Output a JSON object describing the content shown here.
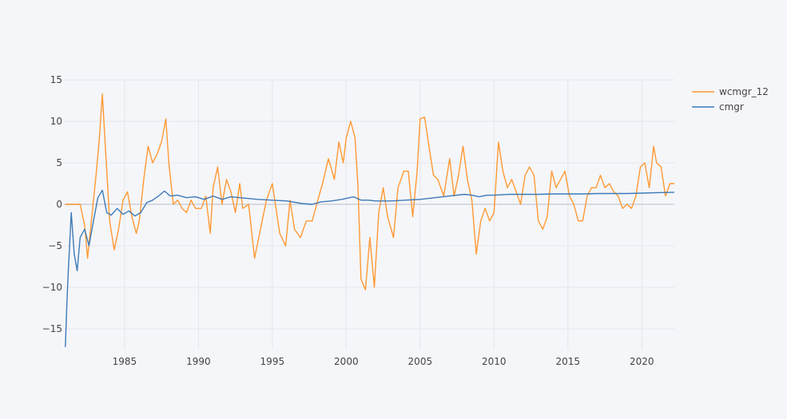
{
  "chart_data": {
    "type": "line",
    "title": "",
    "xlabel": "",
    "ylabel": "",
    "xlim": [
      1980.9,
      2022.2
    ],
    "ylim": [
      -17.5,
      15
    ],
    "x_ticks": [
      1985,
      1990,
      1995,
      2000,
      2005,
      2010,
      2015,
      2020
    ],
    "y_ticks": [
      -15,
      -10,
      -5,
      0,
      5,
      10,
      15
    ],
    "grid": true,
    "legend_position": "top-right",
    "series": [
      {
        "name": "wcmgr_12",
        "color": "#ff9933",
        "x": [
          1981.0,
          1981.7,
          1982.0,
          1982.3,
          1982.5,
          1982.9,
          1983.1,
          1983.3,
          1983.5,
          1983.7,
          1984.0,
          1984.3,
          1984.6,
          1984.9,
          1985.2,
          1985.5,
          1985.8,
          1986.0,
          1986.3,
          1986.6,
          1986.9,
          1987.2,
          1987.5,
          1987.8,
          1988.0,
          1988.3,
          1988.6,
          1988.9,
          1989.2,
          1989.5,
          1989.8,
          1990.2,
          1990.5,
          1990.8,
          1991.0,
          1991.3,
          1991.6,
          1991.9,
          1992.2,
          1992.5,
          1992.8,
          1993.0,
          1993.4,
          1993.8,
          1994.2,
          1994.6,
          1995.0,
          1995.5,
          1995.9,
          1996.2,
          1996.5,
          1996.9,
          1997.3,
          1997.7,
          1998.0,
          1998.4,
          1998.8,
          1999.2,
          1999.5,
          1999.8,
          2000.0,
          2000.3,
          2000.6,
          2000.8,
          2001.0,
          2001.3,
          2001.6,
          2001.9,
          2002.2,
          2002.5,
          2002.8,
          2003.2,
          2003.5,
          2003.9,
          2004.2,
          2004.5,
          2004.8,
          2005.0,
          2005.3,
          2005.6,
          2005.9,
          2006.2,
          2006.6,
          2007.0,
          2007.3,
          2007.6,
          2007.9,
          2008.2,
          2008.5,
          2008.8,
          2009.1,
          2009.4,
          2009.7,
          2010.0,
          2010.3,
          2010.6,
          2010.9,
          2011.2,
          2011.5,
          2011.8,
          2012.1,
          2012.4,
          2012.7,
          2013.0,
          2013.3,
          2013.6,
          2013.9,
          2014.2,
          2014.5,
          2014.8,
          2015.1,
          2015.4,
          2015.7,
          2016.0,
          2016.3,
          2016.6,
          2016.9,
          2017.2,
          2017.5,
          2017.8,
          2018.1,
          2018.4,
          2018.7,
          2019.0,
          2019.3,
          2019.6,
          2019.9,
          2020.2,
          2020.5,
          2020.8,
          2021.0,
          2021.3,
          2021.6,
          2021.9,
          2022.2
        ],
        "values": [
          0,
          0,
          0,
          -2.5,
          -6.5,
          0.5,
          4,
          8,
          13.3,
          7,
          -2,
          -5.5,
          -3,
          0.5,
          1.5,
          -1.5,
          -3.5,
          -2,
          3,
          7,
          5,
          6,
          7.5,
          10.3,
          5,
          0,
          0.5,
          -0.5,
          -1,
          0.5,
          -0.5,
          -0.5,
          1,
          -3.5,
          2,
          4.5,
          0,
          3,
          1.5,
          -1,
          2.5,
          -0.5,
          0,
          -6.5,
          -3,
          0.5,
          2.5,
          -3.5,
          -5,
          0.5,
          -3,
          -4,
          -2,
          -2,
          0,
          2.5,
          5.5,
          3,
          7.5,
          5,
          8,
          10,
          8,
          2,
          -9,
          -10.3,
          -4,
          -10,
          -1,
          2,
          -1.5,
          -4,
          2,
          4,
          4,
          -1.5,
          4,
          10.3,
          10.5,
          7,
          3.5,
          3,
          1,
          5.5,
          1,
          3.5,
          7,
          3,
          0.5,
          -6,
          -2,
          -0.5,
          -2,
          -1,
          7.5,
          4,
          2,
          3,
          1.5,
          0,
          3.5,
          4.5,
          3.5,
          -2,
          -3,
          -1.5,
          4,
          2,
          3,
          4,
          1,
          0,
          -2,
          -2,
          1,
          2,
          2,
          3.5,
          2,
          2.5,
          1.5,
          1,
          -0.5,
          0,
          -0.5,
          1,
          4.5,
          5,
          2,
          7,
          5,
          4.5,
          1,
          2.5,
          2.5
        ]
      },
      {
        "name": "cmgr",
        "color": "#3d7ab8",
        "x": [
          1981.0,
          1981.1,
          1981.2,
          1981.4,
          1981.6,
          1981.8,
          1982.0,
          1982.3,
          1982.6,
          1982.9,
          1983.2,
          1983.5,
          1983.8,
          1984.1,
          1984.5,
          1984.9,
          1985.3,
          1985.7,
          1986.1,
          1986.5,
          1986.9,
          1987.3,
          1987.7,
          1988.1,
          1988.6,
          1989.2,
          1989.8,
          1990.4,
          1991.0,
          1991.6,
          1992.2,
          1992.8,
          1993.4,
          1994.0,
          1995.0,
          1996.0,
          1997.0,
          1997.7,
          1998.3,
          1999.0,
          1999.7,
          2000.5,
          2001.0,
          2001.5,
          2002.0,
          2003.0,
          2004.0,
          2005.0,
          2006.0,
          2007.0,
          2008.0,
          2008.5,
          2009.0,
          2009.5,
          2010.0,
          2011.0,
          2012.0,
          2013.0,
          2014.0,
          2015.0,
          2016.0,
          2017.0,
          2018.0,
          2019.0,
          2020.0,
          2021.0,
          2022.2
        ],
        "values": [
          -17.2,
          -12,
          -8,
          -1,
          -6,
          -8,
          -4,
          -3,
          -5,
          -2,
          0.8,
          1.7,
          -1,
          -1.3,
          -0.5,
          -1.2,
          -0.8,
          -1.4,
          -1,
          0.2,
          0.5,
          1,
          1.6,
          1,
          1.1,
          0.8,
          0.9,
          0.6,
          1,
          0.6,
          0.9,
          0.8,
          0.7,
          0.6,
          0.5,
          0.4,
          0.1,
          0.0,
          0.3,
          0.4,
          0.6,
          0.9,
          0.5,
          0.5,
          0.4,
          0.4,
          0.5,
          0.6,
          0.8,
          1.0,
          1.2,
          1.1,
          0.9,
          1.1,
          1.1,
          1.2,
          1.2,
          1.2,
          1.25,
          1.25,
          1.25,
          1.3,
          1.3,
          1.3,
          1.35,
          1.4,
          1.45
        ]
      }
    ]
  }
}
